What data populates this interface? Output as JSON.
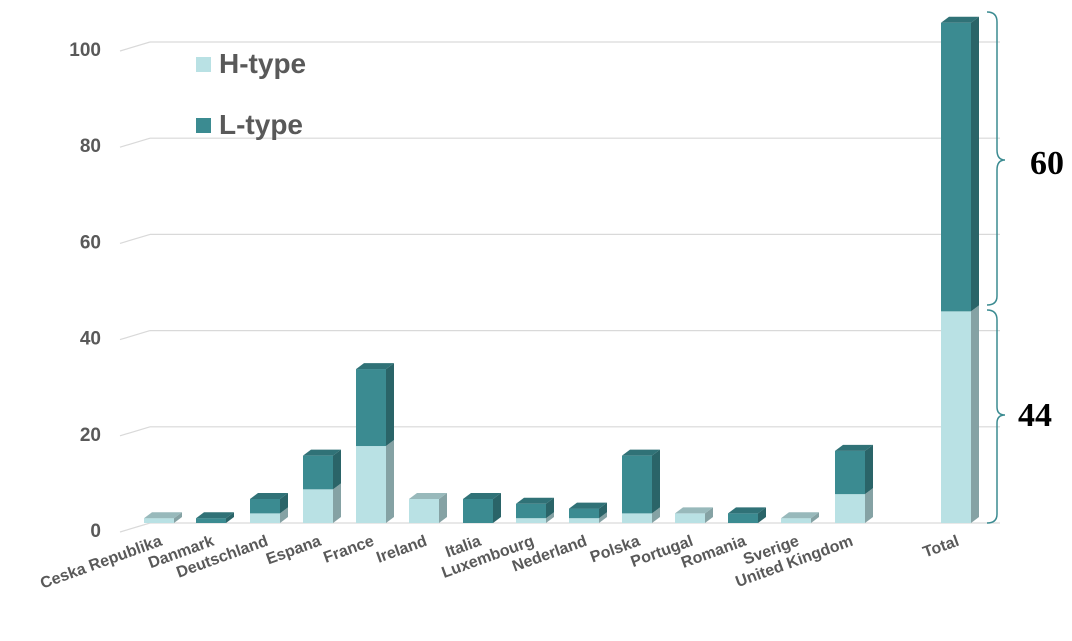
{
  "chart_data": {
    "type": "bar",
    "stacked": true,
    "categories": [
      "Ceska Republika",
      "Danmark",
      "Deutschland",
      "Espana",
      "France",
      "Ireland",
      "Italia",
      "Luxembourg",
      "Nederland",
      "Polska",
      "Portugal",
      "Romania",
      "Sverige",
      "United Kingdom",
      "Total"
    ],
    "series": [
      {
        "name": "H-type",
        "values": [
          1,
          0,
          2,
          7,
          16,
          5,
          0,
          1,
          1,
          2,
          2,
          0,
          1,
          6,
          44
        ]
      },
      {
        "name": "L-type",
        "values": [
          0,
          1,
          3,
          7,
          16,
          0,
          5,
          3,
          2,
          12,
          0,
          2,
          0,
          9,
          60
        ]
      }
    ],
    "yticks": [
      0,
      20,
      40,
      60,
      80,
      100
    ],
    "ylim": [
      0,
      106
    ],
    "legend_position": "top-left",
    "grid": true,
    "annotations": {
      "l_type_total": "60",
      "h_type_total": "44"
    },
    "colors": {
      "H-type": "#b9e1e4",
      "L-type": "#3b8b91",
      "grid": "#d9d9d9",
      "text": "#595959"
    }
  }
}
